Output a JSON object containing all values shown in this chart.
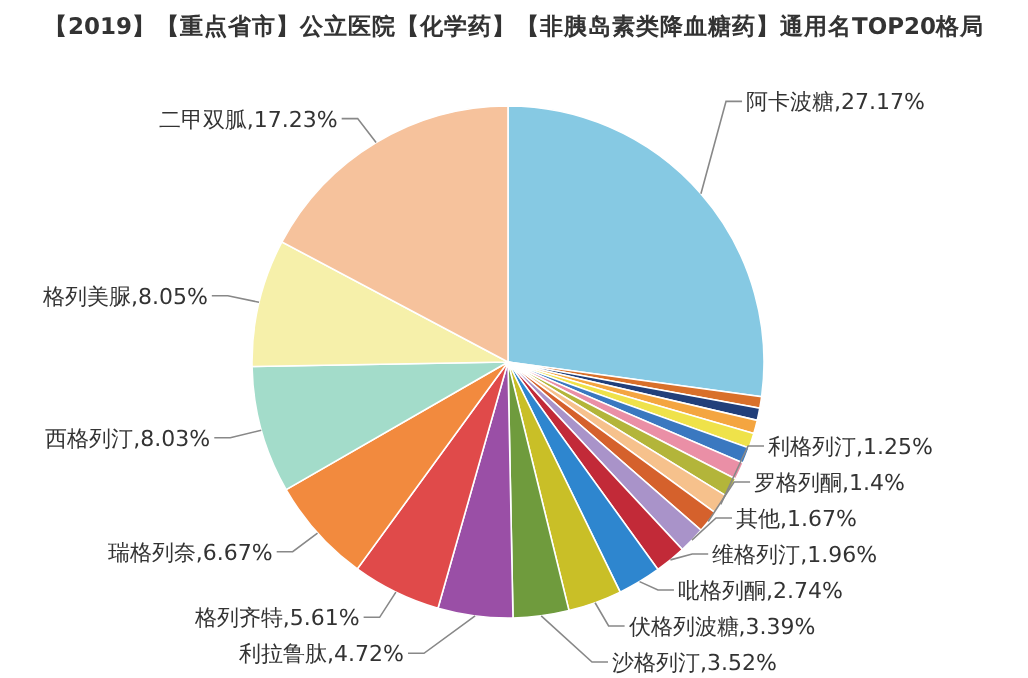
{
  "chart_data": {
    "type": "pie",
    "title": "【2019】【重点省市】公立医院【化学药】【非胰岛素类降血糖药】通用名TOP20格局",
    "categories": [
      "阿卡波糖",
      null,
      null,
      null,
      null,
      null,
      null,
      null,
      "利格列汀",
      "罗格列酮",
      "其他",
      "维格列汀",
      "吡格列酮",
      "伏格列波糖",
      "沙格列汀",
      "利拉鲁肽",
      "格列齐特",
      "瑞格列奈",
      "西格列汀",
      "格列美脲",
      "二甲双胍"
    ],
    "values": [
      27.17,
      0.72,
      0.77,
      0.85,
      0.95,
      1.0,
      1.1,
      1.2,
      1.25,
      1.4,
      1.67,
      1.96,
      2.74,
      3.39,
      3.52,
      4.72,
      5.61,
      6.67,
      8.03,
      8.05,
      17.23
    ],
    "value_labels": [
      "27.17%",
      null,
      null,
      null,
      null,
      null,
      null,
      null,
      "1.25%",
      "1.4%",
      "1.67%",
      "1.96%",
      "2.74%",
      "3.39%",
      "3.52%",
      "4.72%",
      "5.61%",
      "6.67%",
      "8.03%",
      "8.05%",
      "17.23%"
    ],
    "colors": [
      "#86c9e3",
      "#d9702a",
      "#213f7a",
      "#f4a540",
      "#efe24a",
      "#3a78c0",
      "#ea8fa6",
      "#b3b53a",
      "#f6c18c",
      "#d5612c",
      "#a993c9",
      "#c22a38",
      "#2e86cf",
      "#c9bf27",
      "#6f9b3d",
      "#9a4fa6",
      "#e04a4a",
      "#f28a3e",
      "#a3dcca",
      "#f6f0aa",
      "#f6c29c"
    ]
  }
}
